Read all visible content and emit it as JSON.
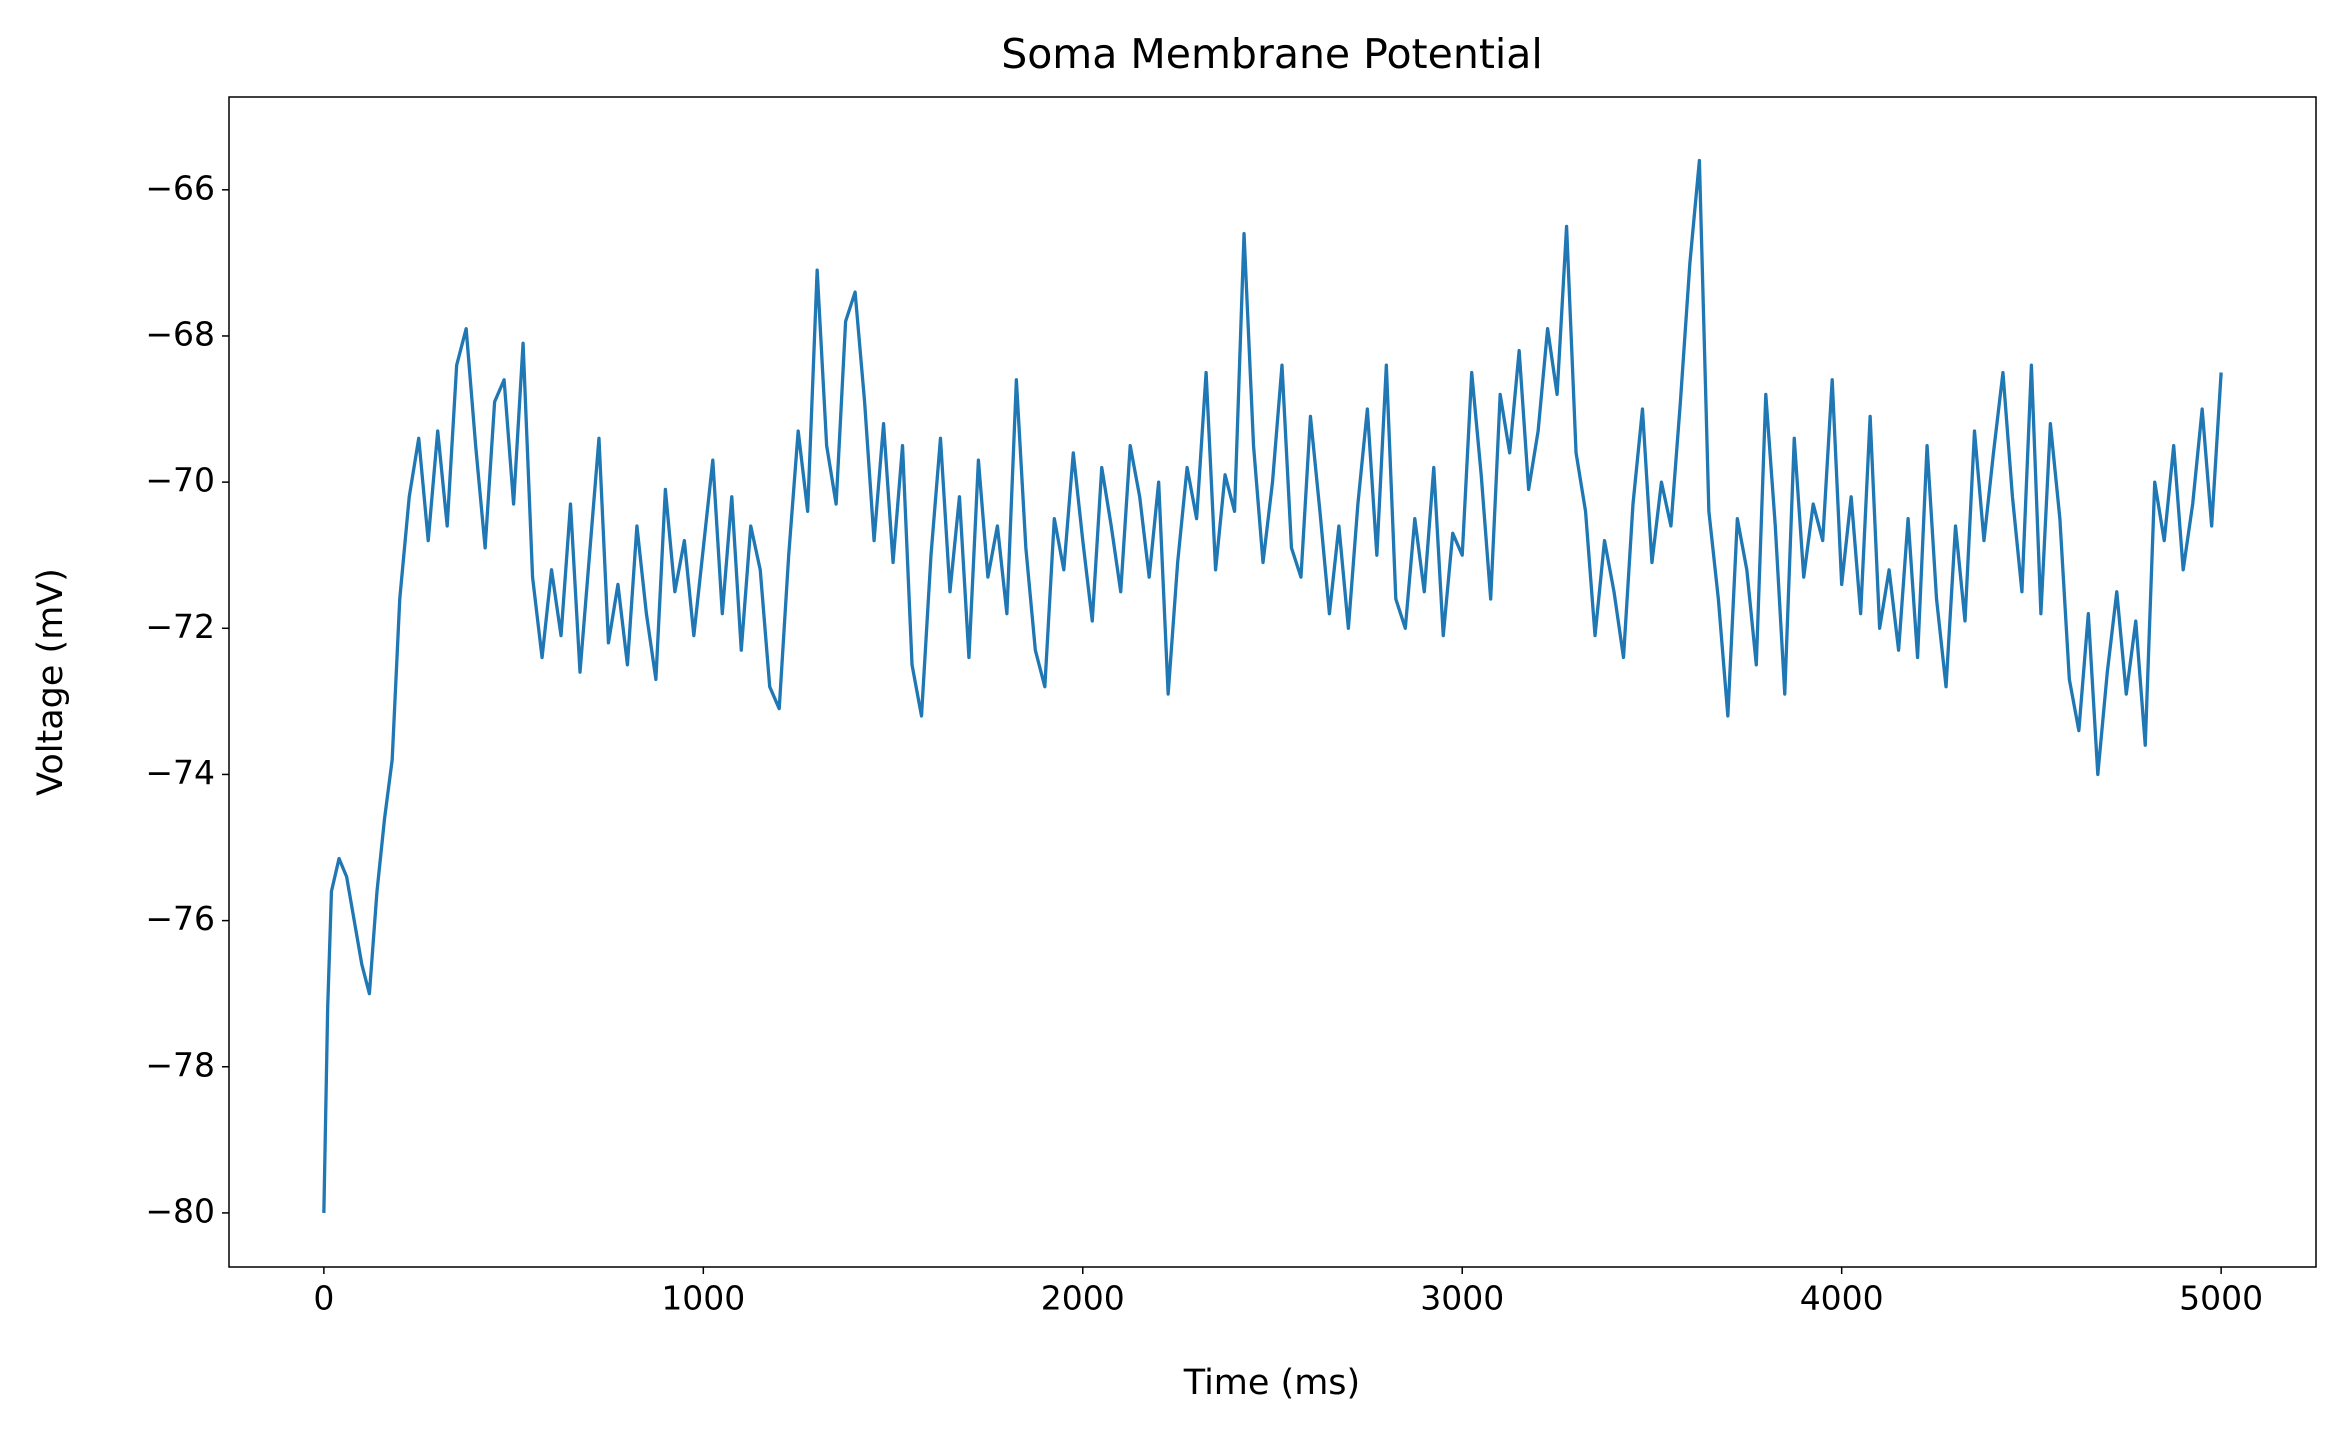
{
  "chart_data": {
    "type": "line",
    "title": "Soma Membrane Potential",
    "x_label": "Time (ms)",
    "y_label": "Voltage (mV)",
    "xlim": [
      -250,
      5250
    ],
    "ylim": [
      -80.74,
      -64.73
    ],
    "xticks": [
      0,
      1000,
      2000,
      3000,
      4000,
      5000
    ],
    "yticks": [
      {
        "value": -80,
        "label": "−80"
      },
      {
        "value": -78,
        "label": "−78"
      },
      {
        "value": -76,
        "label": "−76"
      },
      {
        "value": -74,
        "label": "−74"
      },
      {
        "value": -72,
        "label": "−72"
      },
      {
        "value": -70,
        "label": "−70"
      },
      {
        "value": -68,
        "label": "−68"
      },
      {
        "value": -66,
        "label": "−66"
      }
    ],
    "grid": false,
    "x": [
      0,
      10,
      20,
      40,
      60,
      80,
      100,
      120,
      140,
      160,
      180,
      200,
      225,
      250,
      275,
      300,
      325,
      350,
      375,
      400,
      425,
      450,
      475,
      500,
      525,
      550,
      575,
      600,
      625,
      650,
      675,
      700,
      725,
      750,
      775,
      800,
      825,
      850,
      875,
      900,
      925,
      950,
      975,
      1000,
      1025,
      1050,
      1075,
      1100,
      1125,
      1150,
      1175,
      1200,
      1225,
      1250,
      1275,
      1300,
      1325,
      1350,
      1375,
      1400,
      1425,
      1450,
      1475,
      1500,
      1525,
      1550,
      1575,
      1600,
      1625,
      1650,
      1675,
      1700,
      1725,
      1750,
      1775,
      1800,
      1825,
      1850,
      1875,
      1900,
      1925,
      1950,
      1975,
      2000,
      2025,
      2050,
      2075,
      2100,
      2125,
      2150,
      2175,
      2200,
      2225,
      2250,
      2275,
      2300,
      2325,
      2350,
      2375,
      2400,
      2425,
      2450,
      2475,
      2500,
      2525,
      2550,
      2575,
      2600,
      2625,
      2650,
      2675,
      2700,
      2725,
      2750,
      2775,
      2800,
      2825,
      2850,
      2875,
      2900,
      2925,
      2950,
      2975,
      3000,
      3025,
      3050,
      3075,
      3100,
      3125,
      3150,
      3175,
      3200,
      3225,
      3250,
      3275,
      3300,
      3325,
      3350,
      3375,
      3400,
      3425,
      3450,
      3475,
      3500,
      3525,
      3550,
      3575,
      3600,
      3625,
      3650,
      3675,
      3700,
      3725,
      3750,
      3775,
      3800,
      3825,
      3850,
      3875,
      3900,
      3925,
      3950,
      3975,
      4000,
      4025,
      4050,
      4075,
      4100,
      4125,
      4150,
      4175,
      4200,
      4225,
      4250,
      4275,
      4300,
      4325,
      4350,
      4375,
      4400,
      4425,
      4450,
      4475,
      4500,
      4525,
      4550,
      4575,
      4600,
      4625,
      4650,
      4675,
      4700,
      4725,
      4750,
      4775,
      4800,
      4825,
      4850,
      4875,
      4900,
      4925,
      4950,
      4975,
      5000
    ],
    "series": [
      {
        "name": "Soma",
        "color": "#1f77b4",
        "values": [
          -80,
          -77.2,
          -75.6,
          -75.15,
          -75.4,
          -76,
          -76.6,
          -77,
          -75.6,
          -74.6,
          -73.8,
          -71.6,
          -70.2,
          -69.4,
          -70.8,
          -69.3,
          -70.6,
          -68.4,
          -67.9,
          -69.5,
          -70.9,
          -68.9,
          -68.6,
          -70.3,
          -68.1,
          -71.3,
          -72.4,
          -71.2,
          -72.1,
          -70.3,
          -72.6,
          -71.0,
          -69.4,
          -72.2,
          -71.4,
          -72.5,
          -70.6,
          -71.8,
          -72.7,
          -70.1,
          -71.5,
          -70.8,
          -72.1,
          -70.9,
          -69.7,
          -71.8,
          -70.2,
          -72.3,
          -70.6,
          -71.2,
          -72.8,
          -73.1,
          -71.0,
          -69.3,
          -70.4,
          -67.1,
          -69.5,
          -70.3,
          -67.8,
          -67.4,
          -68.9,
          -70.8,
          -69.2,
          -71.1,
          -69.5,
          -72.5,
          -73.2,
          -71.0,
          -69.4,
          -71.5,
          -70.2,
          -72.4,
          -69.7,
          -71.3,
          -70.6,
          -71.8,
          -68.6,
          -70.9,
          -72.3,
          -72.8,
          -70.5,
          -71.2,
          -69.6,
          -70.8,
          -71.9,
          -69.8,
          -70.6,
          -71.5,
          -69.5,
          -70.2,
          -71.3,
          -70.0,
          -72.9,
          -71.1,
          -69.8,
          -70.5,
          -68.5,
          -71.2,
          -69.9,
          -70.4,
          -66.6,
          -69.5,
          -71.1,
          -70.0,
          -68.4,
          -70.9,
          -71.3,
          -69.1,
          -70.4,
          -71.8,
          -70.6,
          -72.0,
          -70.3,
          -69.0,
          -71.0,
          -68.4,
          -71.6,
          -72.0,
          -70.5,
          -71.5,
          -69.8,
          -72.1,
          -70.7,
          -71.0,
          -68.5,
          -69.9,
          -71.6,
          -68.8,
          -69.6,
          -68.2,
          -70.1,
          -69.3,
          -67.9,
          -68.8,
          -66.5,
          -69.6,
          -70.4,
          -72.1,
          -70.8,
          -71.5,
          -72.4,
          -70.3,
          -69.0,
          -71.1,
          -70.0,
          -70.6,
          -68.9,
          -67.0,
          -65.6,
          -70.4,
          -71.6,
          -73.2,
          -70.5,
          -71.2,
          -72.5,
          -68.8,
          -70.6,
          -72.9,
          -69.4,
          -71.3,
          -70.3,
          -70.8,
          -68.6,
          -71.4,
          -70.2,
          -71.8,
          -69.1,
          -72.0,
          -71.2,
          -72.3,
          -70.5,
          -72.4,
          -69.5,
          -71.6,
          -72.8,
          -70.6,
          -71.9,
          -69.3,
          -70.8,
          -69.6,
          -68.5,
          -70.2,
          -71.5,
          -68.4,
          -71.8,
          -69.2,
          -70.5,
          -72.7,
          -73.4,
          -71.8,
          -74.0,
          -72.6,
          -71.5,
          -72.9,
          -71.9,
          -73.6,
          -70.0,
          -70.8,
          -69.5,
          -71.2,
          -70.3,
          -69.0,
          -70.6,
          -68.5
        ]
      }
    ]
  }
}
